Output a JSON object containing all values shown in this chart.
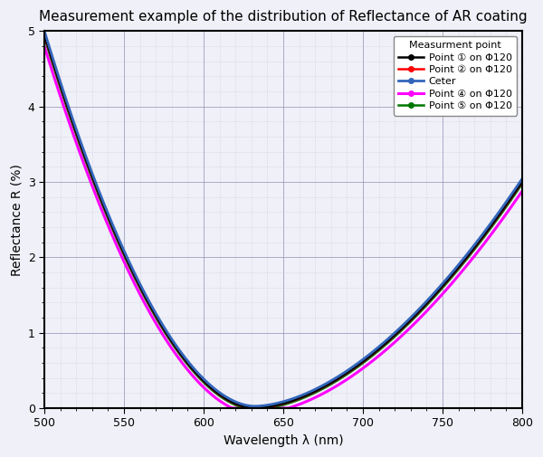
{
  "title": "Measurement example of the distribution of Reflectance of AR coating",
  "xlabel": "Wavelength λ (nm)",
  "ylabel": "Reflectance R (%)",
  "xlim": [
    500,
    800
  ],
  "ylim": [
    0,
    5
  ],
  "xticks": [
    500,
    550,
    600,
    650,
    700,
    750,
    800
  ],
  "yticks": [
    0,
    1,
    2,
    3,
    4,
    5
  ],
  "legend_title": "Measurment point",
  "series": [
    {
      "label": "Point ① on Φ120",
      "color": "#000000",
      "lw": 1.8,
      "zorder": 5,
      "shift": 0.0,
      "scale": 1.0
    },
    {
      "label": "Point ② on Φ120",
      "color": "#ff0000",
      "lw": 1.8,
      "zorder": 4,
      "shift": -0.003,
      "scale": 0.999
    },
    {
      "label": "Ceter",
      "color": "#3366bb",
      "lw": 2.0,
      "zorder": 6,
      "shift": 0.025,
      "scale": 1.005
    },
    {
      "label": "Point ④ on Φ120",
      "color": "#ff00ff",
      "lw": 2.2,
      "zorder": 3,
      "shift": -0.08,
      "scale": 0.985
    },
    {
      "label": "Point ⑤ on Φ120",
      "color": "#007700",
      "lw": 1.8,
      "zorder": 4,
      "shift": -0.018,
      "scale": 0.997
    }
  ],
  "background_color": "#f0f0f8",
  "plot_bg_color": "#f0f0f8",
  "grid_major_color": "#9999bb",
  "grid_minor_color": "#bbbbcc",
  "title_fontsize": 11,
  "axis_label_fontsize": 10,
  "tick_fontsize": 9,
  "legend_fontsize": 8,
  "legend_title_fontsize": 8
}
